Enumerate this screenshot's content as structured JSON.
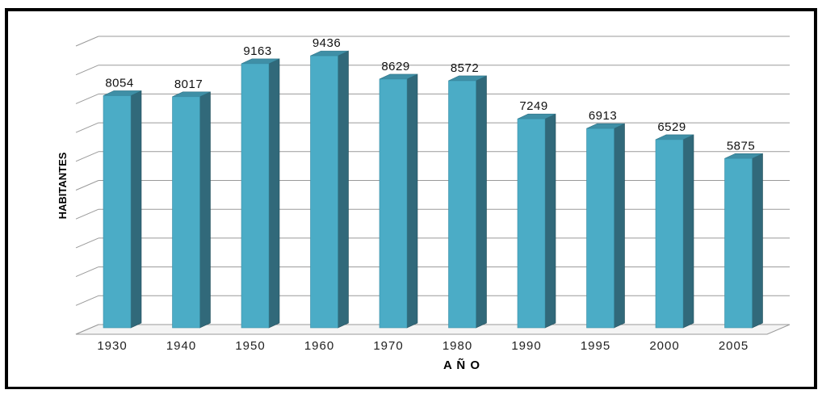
{
  "chart_data": {
    "type": "bar",
    "title": "",
    "xlabel": "A Ñ O",
    "ylabel": "HABITANTES",
    "categories": [
      "1930",
      "1940",
      "1950",
      "1960",
      "1970",
      "1980",
      "1990",
      "1995",
      "2000",
      "2005"
    ],
    "series": [
      {
        "values": [
          8054,
          8017,
          9163,
          9436,
          8629,
          8572,
          7249,
          6913,
          6529,
          5875
        ]
      }
    ],
    "ylim": [
      0,
      10000
    ],
    "grid": true,
    "legend": "none",
    "data_labels": true,
    "style": "3d-column"
  },
  "colors": {
    "bar_front": "#4BACC6",
    "bar_side": "#31697A",
    "bar_top": "#3F8FA6",
    "grid": "#9a9a9a",
    "frame": "#000000"
  }
}
